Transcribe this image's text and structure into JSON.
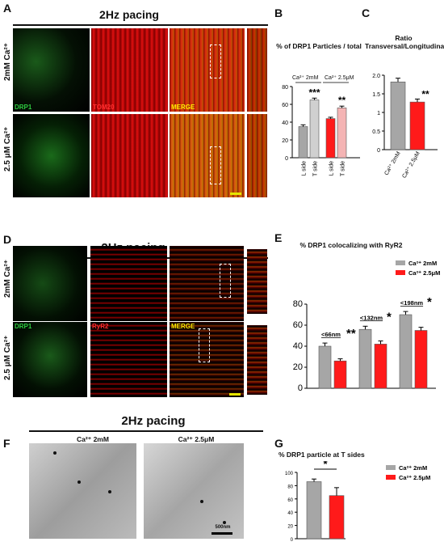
{
  "panel_letters": [
    "A",
    "B",
    "C",
    "D",
    "E",
    "F",
    "G"
  ],
  "panelA": {
    "title": "2Hz pacing",
    "channels": [
      "DRP1",
      "TOM20",
      "MERGE"
    ],
    "rows": [
      {
        "label": "2mM Ca²⁺"
      },
      {
        "label": "2.5 μM Ca²⁺"
      }
    ]
  },
  "panelD": {
    "title": "2Hz pacing",
    "channels": [
      "DRP1",
      "RyR2",
      "MERGE"
    ],
    "rows": [
      {
        "label": "2mM Ca²⁺"
      },
      {
        "label": "2.5 μM Ca²⁺"
      }
    ]
  },
  "panelF": {
    "title": "2Hz pacing",
    "images": [
      "Ca²⁺ 2mM",
      "Ca²⁺ 2.5μM"
    ],
    "scalebar": "500nm"
  },
  "colors": {
    "gray": "#a6a6a6",
    "red": "#ff1a1a",
    "lightgray": "#d0d0d0",
    "pink": "#f4b4b4",
    "scale": "#e6e600"
  },
  "chart_data": [
    {
      "panel": "B",
      "type": "bar",
      "title": "% of DRP1 Particles / total",
      "groups": [
        "Ca²⁺ 2mM",
        "Ca²⁺ 2.5μM"
      ],
      "categories": [
        "L side",
        "T side",
        "L side",
        "T side"
      ],
      "values": [
        35,
        65,
        44,
        56
      ],
      "errors": [
        2,
        2,
        1.5,
        2
      ],
      "significance": [
        "",
        "***",
        "",
        "**"
      ],
      "ylim": [
        0,
        80
      ],
      "yticks": [
        "0",
        "20",
        "40",
        "60",
        "80"
      ]
    },
    {
      "panel": "C",
      "type": "bar",
      "title": "Ratio Transversal/Longitudinal",
      "categories": [
        "Ca²⁺ 2mM",
        "Ca²⁺ 2.5μM"
      ],
      "values": [
        1.82,
        1.28
      ],
      "errors": [
        0.1,
        0.08
      ],
      "significance": [
        "",
        "**"
      ],
      "ylim": [
        0,
        2.0
      ],
      "yticks": [
        "0",
        "0.5",
        "1",
        "1.5",
        "2.0"
      ]
    },
    {
      "panel": "E",
      "type": "bar",
      "title": "% DRP1 colocalizing with RyR2",
      "categories": [
        "<66nm",
        "<132nm",
        "<198nm"
      ],
      "series": [
        {
          "name": "Ca²⁺ 2mM",
          "values": [
            40,
            56,
            70
          ],
          "errors": [
            3,
            3,
            3
          ]
        },
        {
          "name": "Ca²⁺ 2.5μM",
          "values": [
            26,
            42,
            55
          ],
          "errors": [
            2,
            3,
            3
          ]
        }
      ],
      "significance": [
        "**",
        "*",
        "*"
      ],
      "ylim": [
        0,
        80
      ],
      "yticks": [
        "0",
        "20",
        "40",
        "60",
        "80"
      ],
      "legend": "top-right"
    },
    {
      "panel": "G",
      "type": "bar",
      "title": "% DRP1 particle at T sides",
      "series": [
        {
          "name": "Ca²⁺ 2mM",
          "values": [
            86
          ],
          "errors": [
            4
          ]
        },
        {
          "name": "Ca²⁺ 2.5μM",
          "values": [
            65
          ],
          "errors": [
            12
          ]
        }
      ],
      "significance": [
        "*"
      ],
      "ylim": [
        0,
        100
      ],
      "yticks": [
        "0",
        "20",
        "40",
        "60",
        "80",
        "100"
      ],
      "legend": "top-right"
    }
  ]
}
